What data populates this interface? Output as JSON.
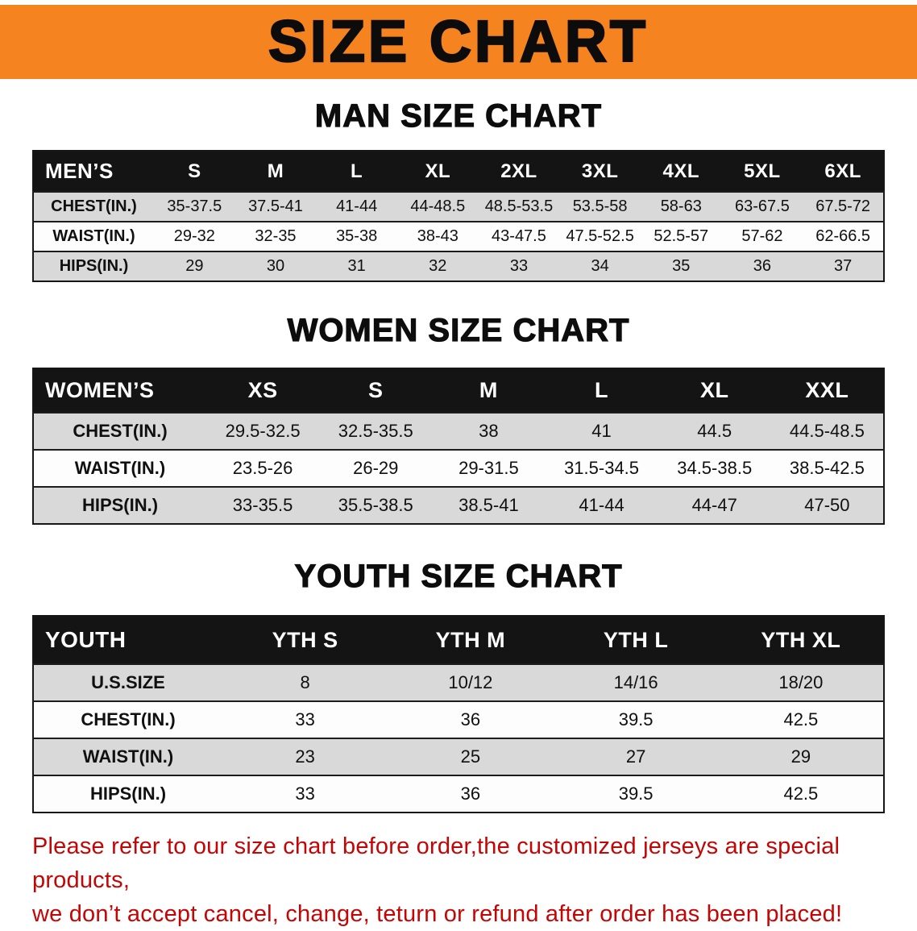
{
  "banner": {
    "title": "SIZE CHART"
  },
  "sections": [
    {
      "id": "men",
      "heading": "MAN SIZE CHART",
      "table": {
        "title": "MEN’S",
        "sizes": [
          "S",
          "M",
          "L",
          "XL",
          "2XL",
          "3XL",
          "4XL",
          "5XL",
          "6XL"
        ],
        "rows": [
          {
            "label": "CHEST(IN.)",
            "values": [
              "35-37.5",
              "37.5-41",
              "41-44",
              "44-48.5",
              "48.5-53.5",
              "53.5-58",
              "58-63",
              "63-67.5",
              "67.5-72"
            ]
          },
          {
            "label": "WAIST(IN.)",
            "values": [
              "29-32",
              "32-35",
              "35-38",
              "38-43",
              "43-47.5",
              "47.5-52.5",
              "52.5-57",
              "57-62",
              "62-66.5"
            ]
          },
          {
            "label": "HIPS(IN.)",
            "values": [
              "29",
              "30",
              "31",
              "32",
              "33",
              "34",
              "35",
              "36",
              "37"
            ]
          }
        ]
      }
    },
    {
      "id": "women",
      "heading": "WOMEN SIZE CHART",
      "table": {
        "title": "WOMEN’S",
        "sizes": [
          "XS",
          "S",
          "M",
          "L",
          "XL",
          "XXL"
        ],
        "rows": [
          {
            "label": "CHEST(IN.)",
            "values": [
              "29.5-32.5",
              "32.5-35.5",
              "38",
              "41",
              "44.5",
              "44.5-48.5"
            ]
          },
          {
            "label": "WAIST(IN.)",
            "values": [
              "23.5-26",
              "26-29",
              "29-31.5",
              "31.5-34.5",
              "34.5-38.5",
              "38.5-42.5"
            ]
          },
          {
            "label": "HIPS(IN.)",
            "values": [
              "33-35.5",
              "35.5-38.5",
              "38.5-41",
              "41-44",
              "44-47",
              "47-50"
            ]
          }
        ]
      }
    },
    {
      "id": "youth",
      "heading": "YOUTH SIZE CHART",
      "table": {
        "title": "YOUTH",
        "sizes": [
          "YTH S",
          "YTH M",
          "YTH L",
          "YTH XL"
        ],
        "rows": [
          {
            "label": "U.S.SIZE",
            "values": [
              "8",
              "10/12",
              "14/16",
              "18/20"
            ]
          },
          {
            "label": "CHEST(IN.)",
            "values": [
              "33",
              "36",
              "39.5",
              "42.5"
            ]
          },
          {
            "label": "WAIST(IN.)",
            "values": [
              "23",
              "25",
              "27",
              "29"
            ]
          },
          {
            "label": "HIPS(IN.)",
            "values": [
              "33",
              "36",
              "39.5",
              "42.5"
            ]
          }
        ]
      }
    }
  ],
  "disclaimer": {
    "line1": "Please refer to our size chart before order,the customized jerseys are special products,",
    "line2": "we don’t accept cancel, change, teturn or refund after order has been placed!"
  },
  "colors": {
    "banner_bg": "#f5831f",
    "header_bg": "#141414",
    "row_alt_bg": "#d9d9d9",
    "disclaimer_text": "#c40505"
  }
}
